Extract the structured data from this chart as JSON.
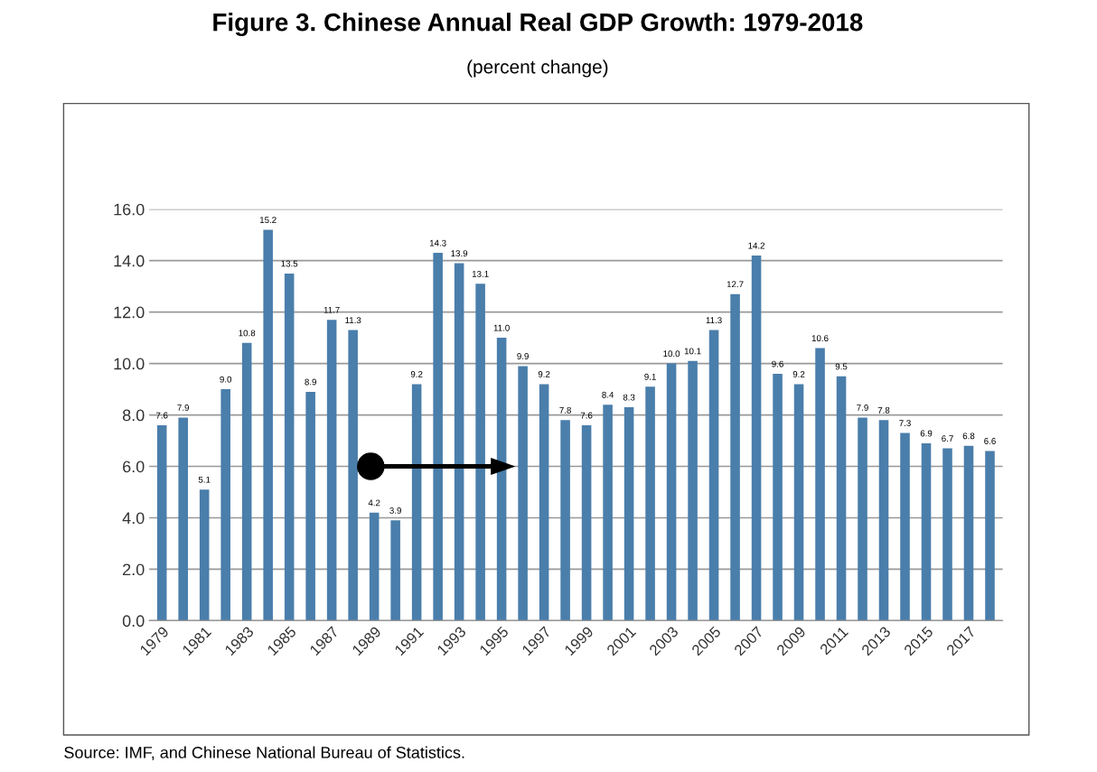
{
  "chart_data": {
    "type": "bar",
    "title": "Figure 3. Chinese Annual Real GDP Growth: 1979-2018",
    "subtitle": "(percent change)",
    "categories": [
      "1979",
      null,
      "1981",
      null,
      "1983",
      null,
      "1985",
      null,
      "1987",
      null,
      "1989",
      null,
      "1991",
      null,
      "1993",
      null,
      "1995",
      null,
      "1997",
      null,
      "1999",
      null,
      "2001",
      null,
      "2003",
      null,
      "2005",
      null,
      "2007",
      null,
      "2009",
      null,
      "2011",
      null,
      "2013",
      null,
      "2015",
      null,
      "2017",
      null
    ],
    "values": [
      7.6,
      7.9,
      5.1,
      9.0,
      10.8,
      15.2,
      13.5,
      8.9,
      11.7,
      11.3,
      4.2,
      3.9,
      9.2,
      14.3,
      13.9,
      13.1,
      11.0,
      9.9,
      9.2,
      7.8,
      7.6,
      8.4,
      8.3,
      9.1,
      10.0,
      10.1,
      11.3,
      12.7,
      14.2,
      9.6,
      9.2,
      10.6,
      9.5,
      7.9,
      7.8,
      7.3,
      6.9,
      6.7,
      6.8,
      6.6
    ],
    "value_labels": [
      "7.6",
      "7.9",
      "5.1",
      "9.0",
      "10.8",
      "15.2",
      "13.5",
      "8.9",
      "11.7",
      "11.3",
      "4.2",
      "3.9",
      "9.2",
      "14.3",
      "13.9",
      "13.1",
      "11.0",
      "9.9",
      "9.2",
      "7.8",
      "7.6",
      "8.4",
      "8.3",
      "9.1",
      "10.0",
      "10.1",
      "11.3",
      "12.7",
      "14.2",
      "9.6",
      "9.2",
      "10.6",
      "9.5",
      "7.9",
      "7.8",
      "7.3",
      "6.9",
      "6.7",
      "6.8",
      "6.6"
    ],
    "color": "#4a7eab",
    "grid": "y",
    "ylim": [
      0,
      16
    ],
    "yticks": [
      {
        "value": 0,
        "label": "0.0"
      },
      {
        "value": 2,
        "label": "2.0"
      },
      {
        "value": 4,
        "label": "4.0"
      },
      {
        "value": 6,
        "label": "6.0"
      },
      {
        "value": 8,
        "label": "8.0"
      },
      {
        "value": 10,
        "label": "10.0"
      },
      {
        "value": 12,
        "label": "12.0"
      },
      {
        "value": 14,
        "label": "14.0"
      },
      {
        "value": 16,
        "label": "16.0"
      }
    ],
    "annotations": [
      "Source: IMF, and Chinese National Bureau of Statistics."
    ]
  }
}
